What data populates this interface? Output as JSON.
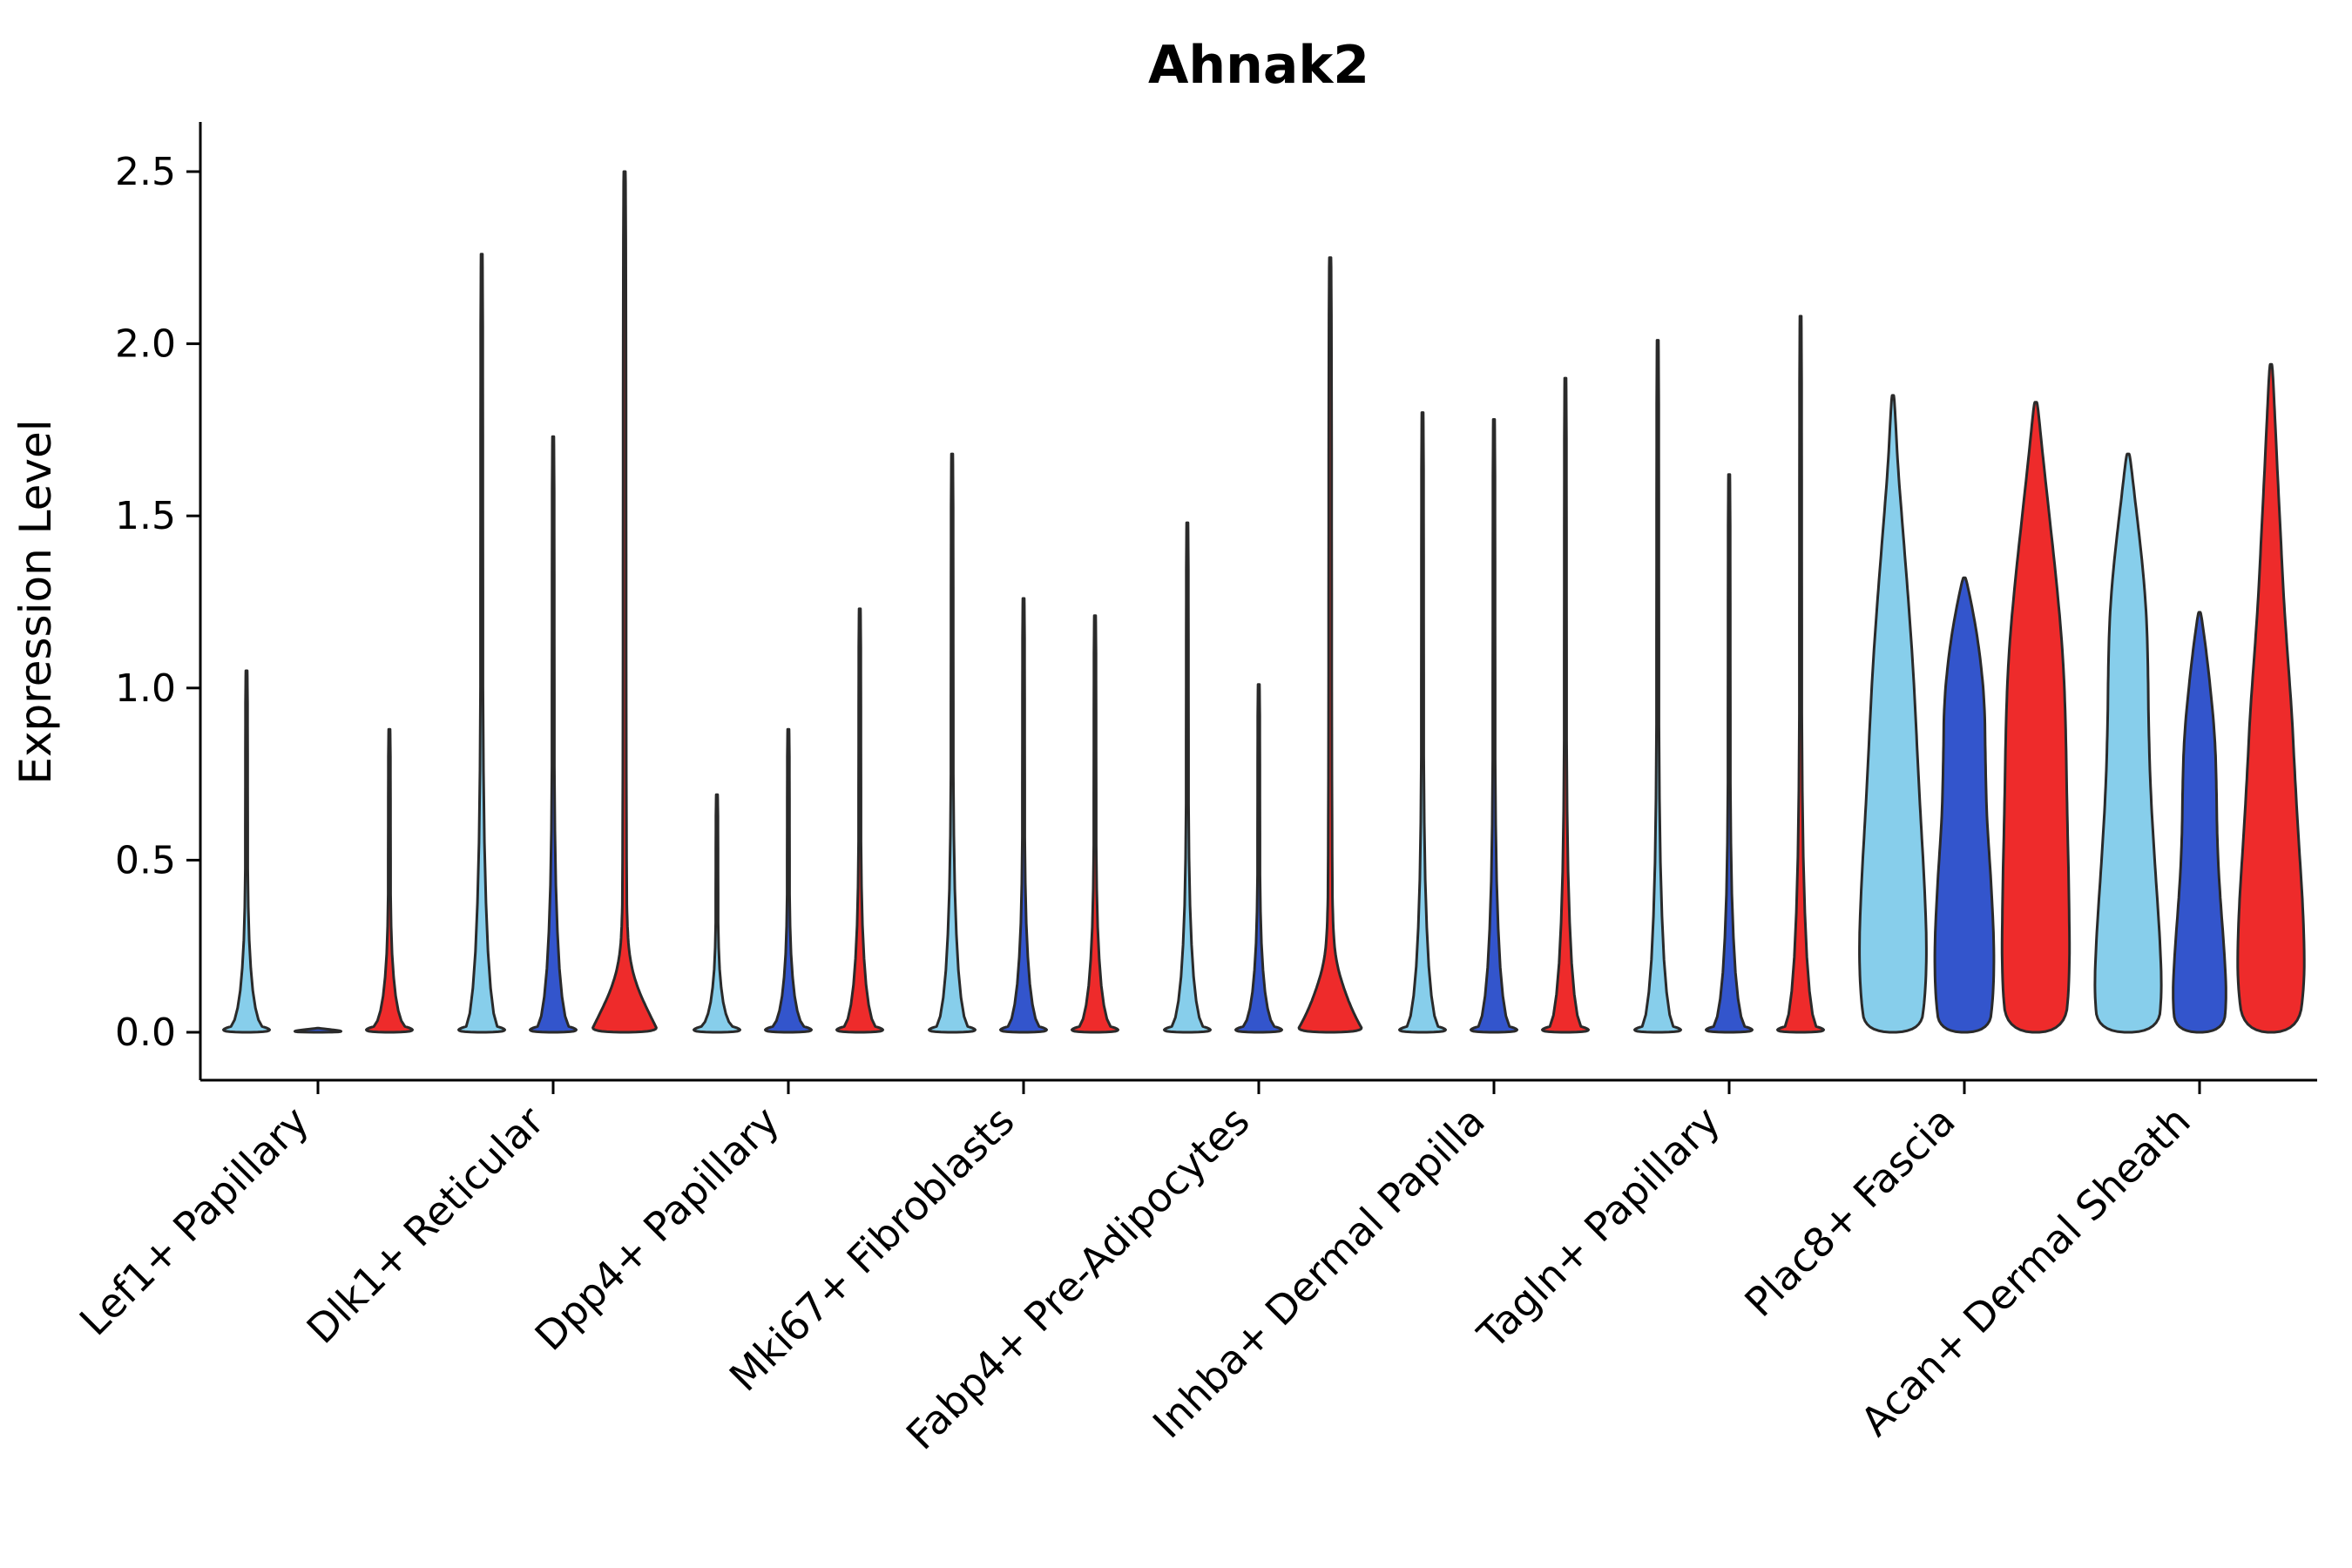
{
  "chart_data": {
    "type": "violin",
    "title": "Ahnak2",
    "ylabel": "Expression Level",
    "xlabel": "",
    "ylim": [
      0,
      2.5
    ],
    "yticks": [
      0.0,
      0.5,
      1.0,
      1.5,
      2.0,
      2.5
    ],
    "grid": false,
    "legend": "none",
    "palette": {
      "violin_light_blue": "#87CEEB",
      "violin_dark_blue": "#3355CC",
      "violin_red": "#EE2B2B",
      "outline": "#2a2a2a",
      "axis": "#000000"
    },
    "categories": [
      "Lef1+ Papillary",
      "Dlk1+ Reticular",
      "Dpp4+ Papillary",
      "Mki67+ Fibroblasts",
      "Fabp4+ Pre-Adipocytes",
      "Inhba+ Dermal Papilla",
      "Tagln+ Papillary",
      "Plac8+ Fascia",
      "Acan+ Dermal Sheath"
    ],
    "groups": [
      {
        "category": "Lef1+ Papillary",
        "violins": [
          {
            "max": 1.05,
            "shape": "spike",
            "color": "#87CEEB"
          },
          {
            "max": 0.0,
            "shape": "spike",
            "color": "#3355CC"
          },
          {
            "max": 0.88,
            "shape": "spike",
            "color": "#EE2B2B"
          }
        ]
      },
      {
        "category": "Dlk1+ Reticular",
        "violins": [
          {
            "max": 2.26,
            "shape": "spike",
            "color": "#87CEEB"
          },
          {
            "max": 1.73,
            "shape": "spike",
            "color": "#3355CC"
          },
          {
            "max": 2.5,
            "shape": "bulge",
            "color": "#EE2B2B",
            "profile": [
              [
                0,
                1.0
              ],
              [
                0.03,
                0.85
              ],
              [
                0.08,
                0.6
              ],
              [
                0.13,
                0.38
              ],
              [
                0.19,
                0.2
              ],
              [
                0.27,
                0.09
              ],
              [
                0.45,
                0.05
              ],
              [
                2.5,
                0.04
              ]
            ]
          }
        ]
      },
      {
        "category": "Dpp4+ Papillary",
        "violins": [
          {
            "max": 0.69,
            "shape": "spike",
            "color": "#87CEEB"
          },
          {
            "max": 0.88,
            "shape": "spike",
            "color": "#3355CC"
          },
          {
            "max": 1.23,
            "shape": "spike",
            "color": "#EE2B2B"
          }
        ]
      },
      {
        "category": "Mki67+ Fibroblasts",
        "violins": [
          {
            "max": 1.68,
            "shape": "spike",
            "color": "#87CEEB"
          },
          {
            "max": 1.26,
            "shape": "spike",
            "color": "#3355CC"
          },
          {
            "max": 1.21,
            "shape": "spike",
            "color": "#EE2B2B"
          }
        ]
      },
      {
        "category": "Fabp4+ Pre-Adipocytes",
        "violins": [
          {
            "max": 1.48,
            "shape": "spike",
            "color": "#87CEEB"
          },
          {
            "max": 1.01,
            "shape": "spike",
            "color": "#3355CC"
          },
          {
            "max": 2.25,
            "shape": "bulge",
            "color": "#EE2B2B",
            "profile": [
              [
                0,
                1.0
              ],
              [
                0.03,
                0.82
              ],
              [
                0.08,
                0.58
              ],
              [
                0.14,
                0.36
              ],
              [
                0.2,
                0.19
              ],
              [
                0.28,
                0.09
              ],
              [
                0.48,
                0.05
              ],
              [
                2.25,
                0.04
              ]
            ]
          }
        ]
      },
      {
        "category": "Inhba+ Dermal Papilla",
        "violins": [
          {
            "max": 1.8,
            "shape": "spike",
            "color": "#87CEEB"
          },
          {
            "max": 1.78,
            "shape": "spike",
            "color": "#3355CC"
          },
          {
            "max": 1.9,
            "shape": "spike",
            "color": "#EE2B2B"
          }
        ]
      },
      {
        "category": "Tagln+ Papillary",
        "violins": [
          {
            "max": 2.01,
            "shape": "spike",
            "color": "#87CEEB"
          },
          {
            "max": 1.62,
            "shape": "spike",
            "color": "#3355CC"
          },
          {
            "max": 2.08,
            "shape": "spike",
            "color": "#EE2B2B"
          }
        ]
      },
      {
        "category": "Plac8+ Fascia",
        "violins": [
          {
            "max": 1.85,
            "shape": "wide",
            "color": "#87CEEB",
            "profile": [
              [
                0,
                0.8
              ],
              [
                0.1,
                0.95
              ],
              [
                0.25,
                1.0
              ],
              [
                0.45,
                0.92
              ],
              [
                0.65,
                0.8
              ],
              [
                0.85,
                0.7
              ],
              [
                1.05,
                0.6
              ],
              [
                1.25,
                0.46
              ],
              [
                1.45,
                0.3
              ],
              [
                1.65,
                0.14
              ],
              [
                1.85,
                0.04
              ]
            ]
          },
          {
            "max": 1.32,
            "shape": "wide",
            "color": "#3355CC",
            "profile": [
              [
                0,
                0.72
              ],
              [
                0.1,
                0.85
              ],
              [
                0.25,
                0.88
              ],
              [
                0.45,
                0.78
              ],
              [
                0.62,
                0.66
              ],
              [
                0.78,
                0.62
              ],
              [
                0.95,
                0.6
              ],
              [
                1.08,
                0.48
              ],
              [
                1.2,
                0.3
              ],
              [
                1.32,
                0.05
              ]
            ]
          },
          {
            "max": 1.83,
            "shape": "wide",
            "color": "#EE2B2B",
            "profile": [
              [
                0,
                0.85
              ],
              [
                0.15,
                1.0
              ],
              [
                0.4,
                0.98
              ],
              [
                0.65,
                0.92
              ],
              [
                0.9,
                0.88
              ],
              [
                1.1,
                0.8
              ],
              [
                1.3,
                0.62
              ],
              [
                1.5,
                0.4
              ],
              [
                1.68,
                0.2
              ],
              [
                1.83,
                0.05
              ]
            ]
          }
        ]
      },
      {
        "category": "Acan+ Dermal Sheath",
        "violins": [
          {
            "max": 1.68,
            "shape": "wide",
            "color": "#87CEEB",
            "profile": [
              [
                0,
                0.88
              ],
              [
                0.12,
                1.0
              ],
              [
                0.3,
                0.92
              ],
              [
                0.5,
                0.78
              ],
              [
                0.7,
                0.66
              ],
              [
                0.9,
                0.6
              ],
              [
                1.1,
                0.58
              ],
              [
                1.25,
                0.52
              ],
              [
                1.4,
                0.38
              ],
              [
                1.55,
                0.2
              ],
              [
                1.68,
                0.05
              ]
            ]
          },
          {
            "max": 1.22,
            "shape": "wide",
            "color": "#3355CC",
            "profile": [
              [
                0,
                0.7
              ],
              [
                0.1,
                0.8
              ],
              [
                0.25,
                0.72
              ],
              [
                0.4,
                0.6
              ],
              [
                0.55,
                0.52
              ],
              [
                0.7,
                0.5
              ],
              [
                0.85,
                0.46
              ],
              [
                1.0,
                0.32
              ],
              [
                1.12,
                0.18
              ],
              [
                1.22,
                0.04
              ]
            ]
          },
          {
            "max": 1.94,
            "shape": "wide",
            "color": "#EE2B2B",
            "profile": [
              [
                0,
                0.8
              ],
              [
                0.15,
                1.0
              ],
              [
                0.35,
                0.95
              ],
              [
                0.55,
                0.82
              ],
              [
                0.75,
                0.7
              ],
              [
                0.92,
                0.62
              ],
              [
                1.08,
                0.5
              ],
              [
                1.25,
                0.38
              ],
              [
                1.45,
                0.28
              ],
              [
                1.65,
                0.18
              ],
              [
                1.82,
                0.1
              ],
              [
                1.94,
                0.04
              ]
            ]
          }
        ]
      }
    ]
  }
}
